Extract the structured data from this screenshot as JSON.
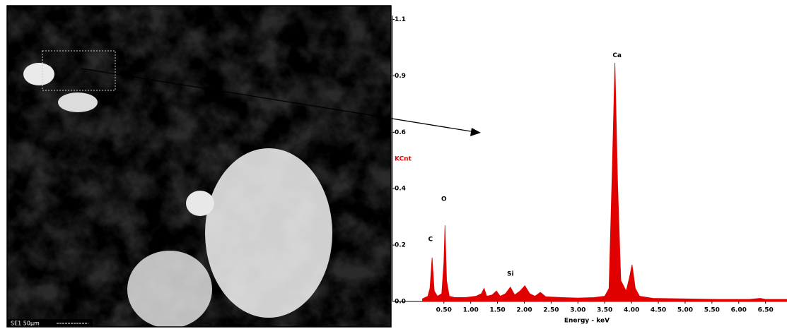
{
  "sem_image": {
    "label": "SE1  50µm"
  },
  "chart_data": {
    "type": "area",
    "xlabel": "Energy - keV",
    "ylabel": "KCnt",
    "color": "#e00000",
    "x": [
      0.1,
      0.2,
      0.24,
      0.28,
      0.32,
      0.38,
      0.46,
      0.5,
      0.52,
      0.55,
      0.6,
      0.7,
      0.9,
      1.1,
      1.2,
      1.25,
      1.3,
      1.4,
      1.48,
      1.55,
      1.65,
      1.74,
      1.82,
      1.92,
      2.01,
      2.1,
      2.2,
      2.3,
      2.4,
      2.7,
      3.0,
      3.3,
      3.5,
      3.58,
      3.64,
      3.69,
      3.74,
      3.8,
      3.9,
      3.96,
      4.01,
      4.07,
      4.15,
      4.4,
      5.0,
      5.6,
      6.2,
      6.4,
      6.5,
      6.9
    ],
    "values": [
      0.01,
      0.02,
      0.05,
      0.167,
      0.04,
      0.02,
      0.03,
      0.15,
      0.29,
      0.08,
      0.02,
      0.015,
      0.015,
      0.02,
      0.03,
      0.05,
      0.02,
      0.025,
      0.04,
      0.02,
      0.03,
      0.055,
      0.025,
      0.04,
      0.06,
      0.03,
      0.02,
      0.035,
      0.018,
      0.015,
      0.013,
      0.015,
      0.02,
      0.05,
      0.5,
      0.91,
      0.45,
      0.08,
      0.04,
      0.09,
      0.14,
      0.05,
      0.02,
      0.012,
      0.01,
      0.008,
      0.008,
      0.012,
      0.008,
      0.008
    ],
    "xlim": [
      -0.46,
      6.9
    ],
    "ylim": [
      0,
      1.09
    ],
    "xticks": [
      {
        "value": 0.5,
        "label": "0.50"
      },
      {
        "value": 1.0,
        "label": "1.00"
      },
      {
        "value": 1.5,
        "label": "1.50"
      },
      {
        "value": 2.0,
        "label": "2.00"
      },
      {
        "value": 2.5,
        "label": "2.50"
      },
      {
        "value": 3.0,
        "label": "3.00"
      },
      {
        "value": 3.5,
        "label": "3.50"
      },
      {
        "value": 4.0,
        "label": "4.00"
      },
      {
        "value": 4.5,
        "label": "4.50"
      },
      {
        "value": 5.0,
        "label": "5.00"
      },
      {
        "value": 5.5,
        "label": "5.50"
      },
      {
        "value": 6.0,
        "label": "6.00"
      },
      {
        "value": 6.5,
        "label": "6.50"
      }
    ],
    "yticks": [
      {
        "value": 0,
        "label": "0.0"
      },
      {
        "value": 0.215,
        "label": "0.2"
      },
      {
        "value": 0.43,
        "label": "0.4"
      },
      {
        "value": 0.645,
        "label": "0.6"
      },
      {
        "value": 0.86,
        "label": "0.9"
      },
      {
        "value": 1.075,
        "label": "1.1"
      }
    ],
    "annotations": [
      {
        "text": "C",
        "x": 0.25,
        "y": 0.237
      },
      {
        "text": "O",
        "x": 0.5,
        "y": 0.39
      },
      {
        "text": "Si",
        "x": 1.74,
        "y": 0.105
      },
      {
        "text": "Ca",
        "x": 3.73,
        "y": 0.938
      }
    ]
  }
}
